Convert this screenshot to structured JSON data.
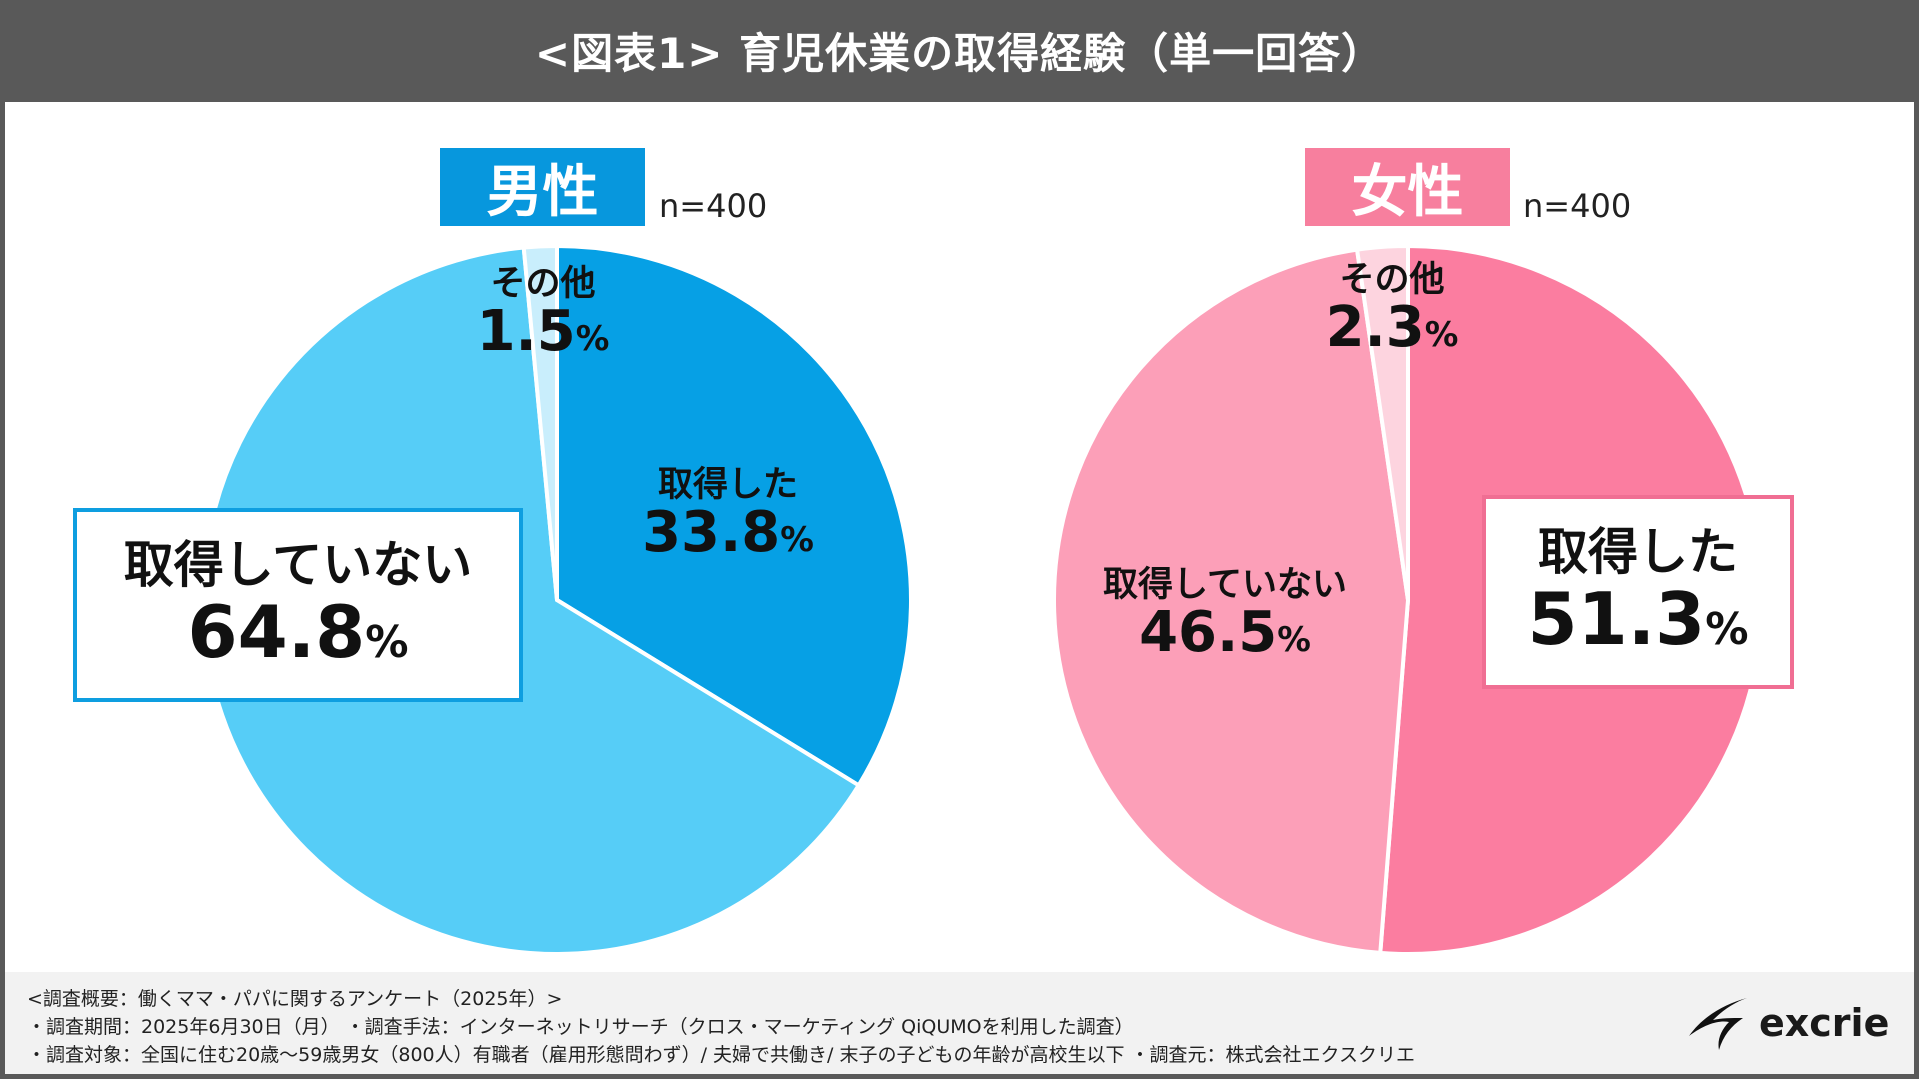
{
  "title": "<図表1> 育児休業の取得経験（単一回答）",
  "colors": {
    "male_taken": "#06a0e5",
    "male_not": "#56cdf7",
    "male_other": "#c9eefc",
    "female_taken": "#fb7da0",
    "female_not": "#fc9fb8",
    "female_other": "#fdd4df"
  },
  "chart_data": [
    {
      "type": "pie",
      "title": "男性",
      "n_label": "n=400",
      "categories": [
        "取得した",
        "取得していない",
        "その他"
      ],
      "values": [
        33.8,
        64.8,
        1.5
      ],
      "value_labels": [
        "33.8",
        "64.8",
        "1.5"
      ],
      "unit": "%",
      "start": "top, clockwise"
    },
    {
      "type": "pie",
      "title": "女性",
      "n_label": "n=400",
      "categories": [
        "取得した",
        "取得していない",
        "その他"
      ],
      "values": [
        51.3,
        46.5,
        2.3
      ],
      "value_labels": [
        "51.3",
        "46.5",
        "2.3"
      ],
      "unit": "%",
      "start": "top, clockwise"
    }
  ],
  "footer": {
    "line1": "<調査概要：働くママ・パパに関するアンケート（2025年）>",
    "line2": "・調査期間：2025年6月30日（月） ・調査手法：インターネットリサーチ（クロス・マーケティング QiQUMOを利用した調査）",
    "line3": "・調査対象：全国に住む20歳～59歳男女（800人）有職者（雇用形態問わず）/ 夫婦で共働き/ 末子の子どもの年齢が高校生以下 ・調査元：株式会社エクスクリエ"
  },
  "logo": {
    "text": "excrie",
    "icon": "excrie-swoosh-icon"
  }
}
